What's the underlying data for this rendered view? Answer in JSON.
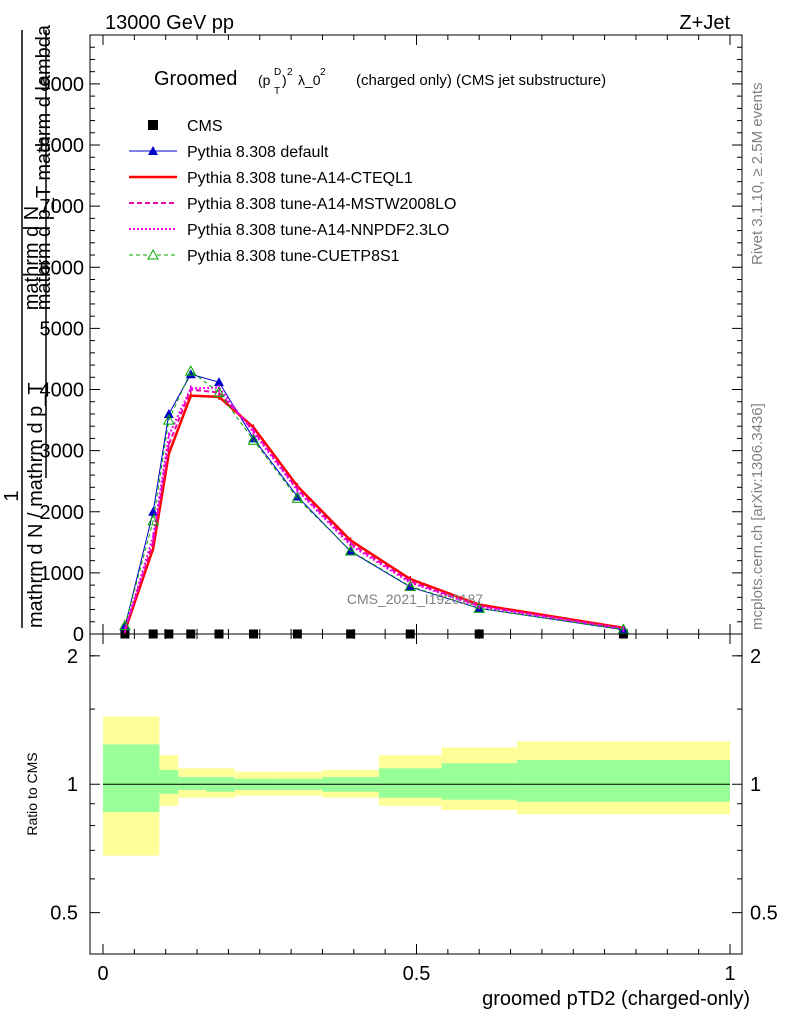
{
  "header": {
    "energy": "13000 GeV pp",
    "process": "Z+Jet"
  },
  "side_labels": {
    "rivet": "Rivet 3.1.10, ≥ 2.5M events",
    "mcplots": "mcplots.cern.ch [arXiv:1306.3436]"
  },
  "watermark": "CMS_2021_I1920187",
  "chart_data": [
    {
      "type": "line",
      "panel": "main",
      "title": "Groomed",
      "title_tail": "(charged only) (CMS jet substructure)",
      "ylabel_top": "mathrm d N",
      "ylabel_top2": "mathrm d p_T mathrm d lambda",
      "ylabel_one": "1",
      "ylabel_bottom": "mathrm d N / mathrm d p_T",
      "xlim": [
        0,
        1
      ],
      "ylim": [
        0,
        9800
      ],
      "yticks": [
        0,
        1000,
        2000,
        3000,
        4000,
        5000,
        6000,
        7000,
        8000,
        9000
      ],
      "ytick_labels": [
        "0",
        "1000",
        "2000",
        "3000",
        "4000",
        "5000",
        "6000",
        "7000",
        "8000",
        "9000"
      ],
      "legend_position": "top-left",
      "x": [
        0.035,
        0.08,
        0.105,
        0.14,
        0.185,
        0.24,
        0.31,
        0.395,
        0.49,
        0.6,
        0.83
      ],
      "series": [
        {
          "name": "CMS",
          "color": "#000000",
          "style": "square",
          "values": [
            0,
            0,
            0,
            0,
            0,
            0,
            0,
            0,
            0,
            0,
            0
          ]
        },
        {
          "name": "Pythia 8.308 default",
          "color": "#0000cc",
          "style": "line-triangle",
          "values": [
            120,
            2000,
            3600,
            4250,
            4120,
            3200,
            2250,
            1350,
            770,
            420,
            70
          ]
        },
        {
          "name": "Pythia 8.308 tune-A14-CTEQL1",
          "color": "#ff0000",
          "style": "solid-thick",
          "values": [
            50,
            1400,
            2950,
            3900,
            3880,
            3380,
            2420,
            1530,
            900,
            480,
            100
          ]
        },
        {
          "name": "Pythia 8.308 tune-A14-MSTW2008LO",
          "color": "#ee00aa",
          "style": "dashed",
          "values": [
            60,
            1500,
            3100,
            4000,
            3950,
            3330,
            2370,
            1480,
            860,
            460,
            90
          ]
        },
        {
          "name": "Pythia 8.308 tune-A14-NNPDF2.3LO",
          "color": "#ee00ee",
          "style": "dotted",
          "values": [
            70,
            1600,
            3250,
            4020,
            4030,
            3300,
            2350,
            1450,
            840,
            450,
            85
          ]
        },
        {
          "name": "Pythia 8.308 tune-CUETP8S1",
          "color": "#00aa00",
          "style": "dashed-triangle",
          "values": [
            140,
            1850,
            3500,
            4300,
            3950,
            3170,
            2220,
            1360,
            780,
            420,
            75
          ]
        }
      ]
    },
    {
      "type": "area",
      "panel": "ratio",
      "ylabel": "Ratio to CMS",
      "xlabel": "groomed pTD2 (charged-only)",
      "xlim": [
        0,
        1
      ],
      "ylim": [
        0.4,
        2.25
      ],
      "yticks": [
        0.5,
        1,
        2
      ],
      "ytick_labels": [
        "0.5",
        "1",
        "2"
      ],
      "xticks": [
        0,
        0.5,
        1
      ],
      "xtick_labels": [
        "0",
        "0.5",
        "1"
      ],
      "bins": [
        {
          "x0": 0.0,
          "x1": 0.09,
          "yellow": [
            0.68,
            1.44
          ],
          "green": [
            0.86,
            1.24
          ]
        },
        {
          "x0": 0.09,
          "x1": 0.12,
          "yellow": [
            0.89,
            1.17
          ],
          "green": [
            0.95,
            1.08
          ]
        },
        {
          "x0": 0.12,
          "x1": 0.165,
          "yellow": [
            0.93,
            1.09
          ],
          "green": [
            0.97,
            1.04
          ]
        },
        {
          "x0": 0.165,
          "x1": 0.21,
          "yellow": [
            0.93,
            1.09
          ],
          "green": [
            0.96,
            1.04
          ]
        },
        {
          "x0": 0.21,
          "x1": 0.27,
          "yellow": [
            0.94,
            1.07
          ],
          "green": [
            0.97,
            1.03
          ]
        },
        {
          "x0": 0.27,
          "x1": 0.35,
          "yellow": [
            0.94,
            1.07
          ],
          "green": [
            0.97,
            1.03
          ]
        },
        {
          "x0": 0.35,
          "x1": 0.44,
          "yellow": [
            0.93,
            1.08
          ],
          "green": [
            0.96,
            1.04
          ]
        },
        {
          "x0": 0.44,
          "x1": 0.54,
          "yellow": [
            0.89,
            1.17
          ],
          "green": [
            0.93,
            1.09
          ]
        },
        {
          "x0": 0.54,
          "x1": 0.66,
          "yellow": [
            0.87,
            1.22
          ],
          "green": [
            0.92,
            1.12
          ]
        },
        {
          "x0": 0.66,
          "x1": 1.0,
          "yellow": [
            0.85,
            1.26
          ],
          "green": [
            0.91,
            1.14
          ]
        }
      ],
      "colors": {
        "yellow": "#ffff99",
        "green": "#99ff99"
      }
    }
  ]
}
